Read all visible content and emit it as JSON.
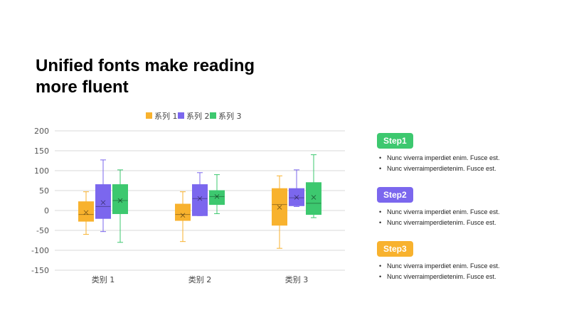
{
  "title": "Unified fonts make reading more fluent",
  "chart_data": {
    "type": "box",
    "categories": [
      "类别 1",
      "类别 2",
      "类别 3"
    ],
    "ylim": [
      -150,
      200
    ],
    "yticks": [
      200,
      150,
      100,
      50,
      0,
      -50,
      -100,
      -150
    ],
    "grid": true,
    "legend_position": "top",
    "series": [
      {
        "name": "系列 1",
        "color": "#F8B22E",
        "boxes": [
          {
            "min": -60,
            "q1": -27,
            "median": -10,
            "mean": -5,
            "q3": 22,
            "max": 47
          },
          {
            "min": -78,
            "q1": -25,
            "median": -10,
            "mean": -12,
            "q3": 16,
            "max": 47
          },
          {
            "min": -95,
            "q1": -37,
            "median": 15,
            "mean": 8,
            "q3": 55,
            "max": 87
          }
        ]
      },
      {
        "name": "系列 2",
        "color": "#7B67EE",
        "boxes": [
          {
            "min": -53,
            "q1": -20,
            "median": 10,
            "mean": 20,
            "q3": 65,
            "max": 127
          },
          {
            "min": -13,
            "q1": -13,
            "median": 30,
            "mean": 30,
            "q3": 65,
            "max": 95
          },
          {
            "min": 10,
            "q1": 12,
            "median": 32,
            "mean": 33,
            "q3": 55,
            "max": 102
          }
        ]
      },
      {
        "name": "系列 3",
        "color": "#3DC86F",
        "boxes": [
          {
            "min": -80,
            "q1": -8,
            "median": 25,
            "mean": 25,
            "q3": 65,
            "max": 102
          },
          {
            "min": -8,
            "q1": 15,
            "median": 35,
            "mean": 35,
            "q3": 50,
            "max": 90
          },
          {
            "min": -18,
            "q1": -10,
            "median": 18,
            "mean": 33,
            "q3": 70,
            "max": 140
          }
        ]
      }
    ]
  },
  "steps": [
    {
      "label": "Step1",
      "color": "#3DC86F",
      "bullets": [
        "Nunc viverra imperdiet enim. Fusce est.",
        "Nunc viverraimperdietenim. Fusce est."
      ]
    },
    {
      "label": "Step2",
      "color": "#7B67EE",
      "bullets": [
        "Nunc viverra imperdiet enim. Fusce est.",
        "Nunc viverraimperdietenim. Fusce est."
      ]
    },
    {
      "label": "Step3",
      "color": "#F8B22E",
      "bullets": [
        "Nunc viverra imperdiet enim. Fusce est.",
        "Nunc viverraimperdietenim. Fusce est."
      ]
    }
  ]
}
